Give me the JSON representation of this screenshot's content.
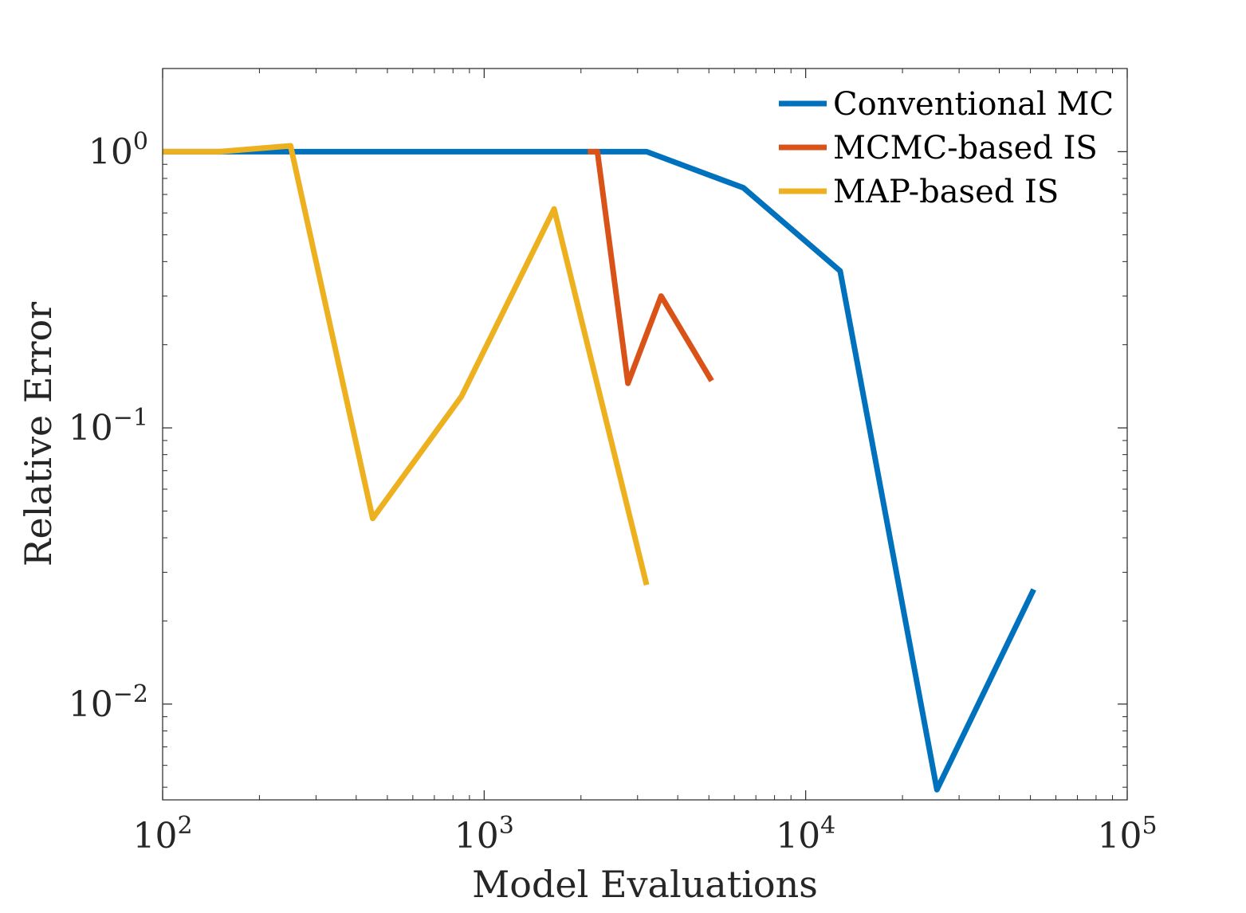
{
  "chart_data": {
    "type": "line",
    "title": "",
    "xlabel": "Model Evaluations",
    "ylabel": "Relative Error",
    "xscale": "log",
    "yscale": "log",
    "xlim": [
      100,
      100000
    ],
    "ylim": [
      0.0045,
      2.0
    ],
    "grid": false,
    "legend_position": "top-right",
    "x_ticks": [
      {
        "base": "10",
        "exp": "2",
        "value": 100
      },
      {
        "base": "10",
        "exp": "3",
        "value": 1000
      },
      {
        "base": "10",
        "exp": "4",
        "value": 10000
      },
      {
        "base": "10",
        "exp": "5",
        "value": 100000
      }
    ],
    "y_ticks": [
      {
        "base": "10",
        "exp": "0",
        "value": 1
      },
      {
        "base": "10",
        "exp": "−1",
        "value": 0.1
      },
      {
        "base": "10",
        "exp": "−2",
        "value": 0.01
      }
    ],
    "series": [
      {
        "name": "Conventional MC",
        "color": "#0072BD",
        "points": [
          [
            100,
            1.0
          ],
          [
            3200,
            1.0
          ],
          [
            6400,
            0.74
          ],
          [
            12800,
            0.37
          ],
          [
            25600,
            0.0049
          ],
          [
            51200,
            0.026
          ]
        ]
      },
      {
        "name": "MCMC-based IS",
        "color": "#D95319",
        "points": [
          [
            2100,
            1.0
          ],
          [
            2250,
            1.0
          ],
          [
            2800,
            0.145
          ],
          [
            3550,
            0.3
          ],
          [
            5100,
            0.148
          ]
        ]
      },
      {
        "name": "MAP-based IS",
        "color": "#EDB120",
        "points": [
          [
            100,
            1.0
          ],
          [
            150,
            1.0
          ],
          [
            250,
            1.05
          ],
          [
            450,
            0.047
          ],
          [
            850,
            0.13
          ],
          [
            1650,
            0.62
          ],
          [
            3200,
            0.027
          ]
        ]
      }
    ]
  }
}
